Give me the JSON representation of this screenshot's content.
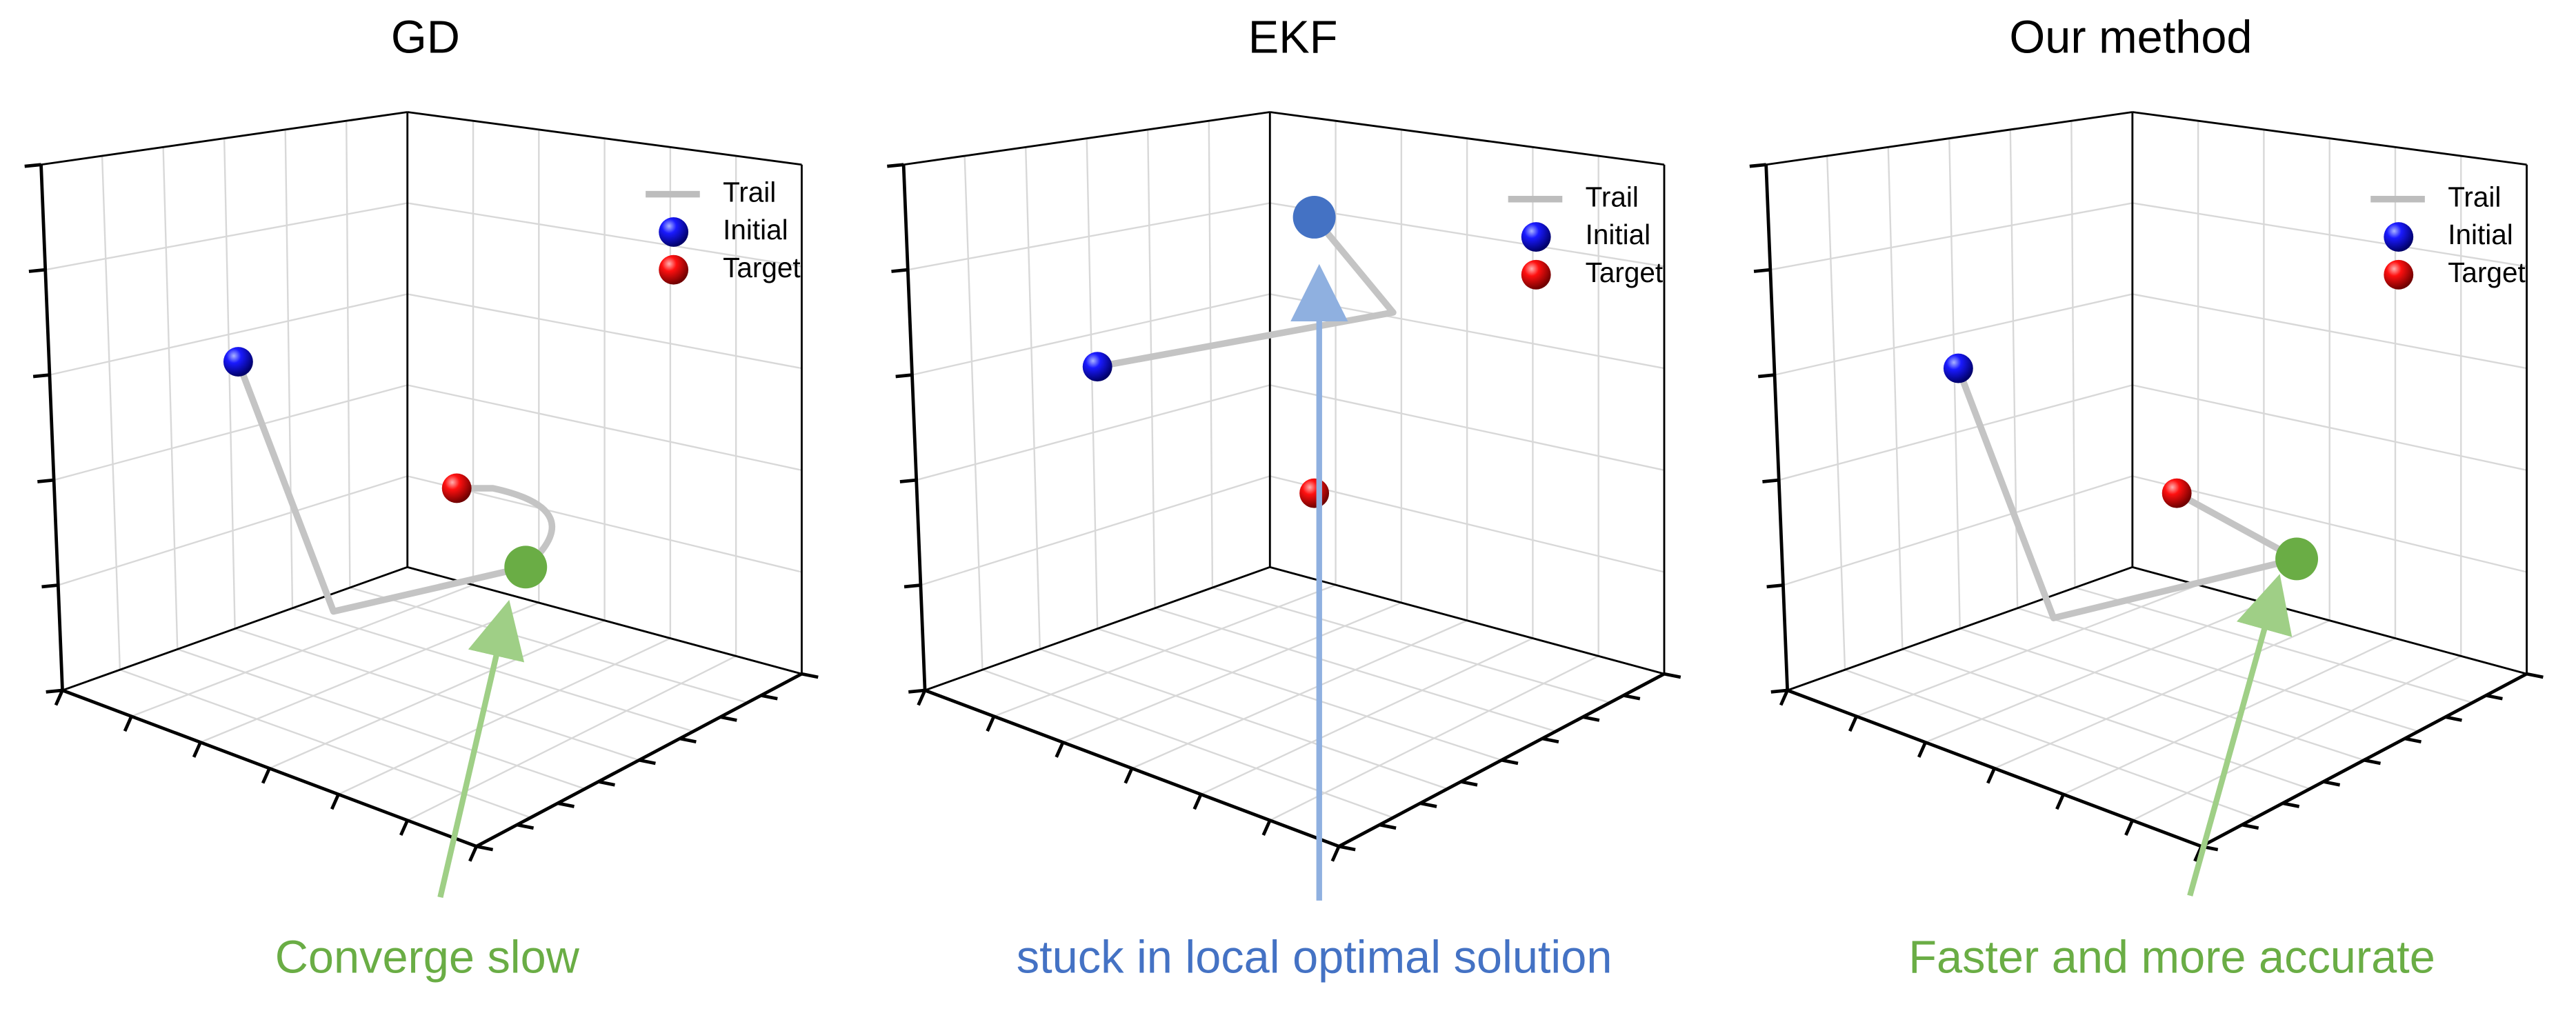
{
  "panels": [
    {
      "title": "GD",
      "legend": [
        "Trail",
        "Initial",
        "Target"
      ],
      "annotation": "Converge slow"
    },
    {
      "title": "EKF",
      "legend": [
        "Trail",
        "Initial",
        "Target"
      ],
      "annotation": "stuck in local optimal solution"
    },
    {
      "title": "Our method",
      "legend": [
        "Trail",
        "Initial",
        "Target"
      ],
      "annotation": "Faster and more accurate"
    }
  ]
}
